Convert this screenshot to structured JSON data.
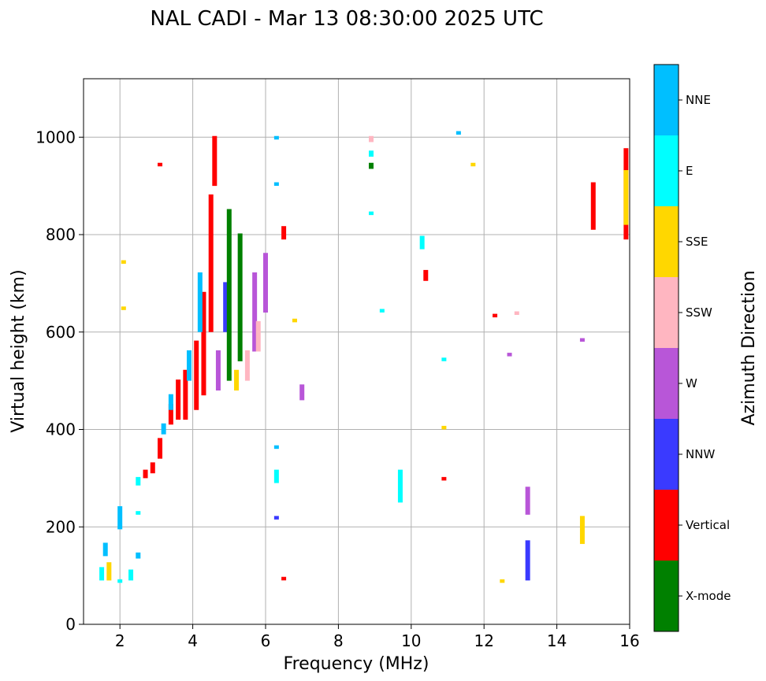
{
  "chart_data": {
    "type": "scatter",
    "title": "NAL CADI - Mar 13 08:30:00 2025 UTC",
    "xlabel": "Frequency (MHz)",
    "ylabel": "Virtual height (km)",
    "xlim": [
      1,
      16
    ],
    "ylim": [
      0,
      1120
    ],
    "xticks": [
      2,
      4,
      6,
      8,
      10,
      12,
      14,
      16
    ],
    "yticks": [
      0,
      200,
      400,
      600,
      800,
      1000
    ],
    "grid": true,
    "colorbar": {
      "label": "Azimuth Direction",
      "categories": [
        {
          "name": "X-mode",
          "color": "#008000"
        },
        {
          "name": "Vertical",
          "color": "#ff0000"
        },
        {
          "name": "NNW",
          "color": "#3a3aff"
        },
        {
          "name": "W",
          "color": "#b856d8"
        },
        {
          "name": "SSW",
          "color": "#ffb6c1"
        },
        {
          "name": "SSE",
          "color": "#ffd700"
        },
        {
          "name": "E",
          "color": "#00ffff"
        },
        {
          "name": "NNE",
          "color": "#00bfff"
        }
      ]
    },
    "traces": [
      {
        "category": "E",
        "f": 1.5,
        "h0": 90,
        "h1": 115
      },
      {
        "category": "NNE",
        "f": 1.6,
        "h0": 140,
        "h1": 165
      },
      {
        "category": "SSE",
        "f": 1.7,
        "h0": 90,
        "h1": 125
      },
      {
        "category": "NNE",
        "f": 2.0,
        "h0": 195,
        "h1": 240
      },
      {
        "category": "E",
        "f": 2.0,
        "h0": 90,
        "h1": 90
      },
      {
        "category": "SSE",
        "f": 2.1,
        "h0": 650,
        "h1": 650
      },
      {
        "category": "SSE",
        "f": 2.1,
        "h0": 745,
        "h1": 745
      },
      {
        "category": "E",
        "f": 2.3,
        "h0": 90,
        "h1": 110
      },
      {
        "category": "E",
        "f": 2.5,
        "h0": 225,
        "h1": 230
      },
      {
        "category": "NNE",
        "f": 2.5,
        "h0": 135,
        "h1": 145
      },
      {
        "category": "E",
        "f": 2.5,
        "h0": 285,
        "h1": 300
      },
      {
        "category": "Vertical",
        "f": 2.7,
        "h0": 300,
        "h1": 315
      },
      {
        "category": "Vertical",
        "f": 2.9,
        "h0": 310,
        "h1": 330
      },
      {
        "category": "Vertical",
        "f": 3.1,
        "h0": 340,
        "h1": 380
      },
      {
        "category": "NNE",
        "f": 3.2,
        "h0": 390,
        "h1": 410
      },
      {
        "category": "Vertical",
        "f": 3.4,
        "h0": 410,
        "h1": 450
      },
      {
        "category": "NNE",
        "f": 3.4,
        "h0": 440,
        "h1": 470
      },
      {
        "category": "Vertical",
        "f": 3.6,
        "h0": 420,
        "h1": 500
      },
      {
        "category": "Vertical",
        "f": 3.8,
        "h0": 420,
        "h1": 520
      },
      {
        "category": "NNE",
        "f": 3.9,
        "h0": 500,
        "h1": 560
      },
      {
        "category": "Vertical",
        "f": 4.1,
        "h0": 440,
        "h1": 580
      },
      {
        "category": "Vertical",
        "f": 4.3,
        "h0": 470,
        "h1": 680
      },
      {
        "category": "NNE",
        "f": 4.2,
        "h0": 600,
        "h1": 720
      },
      {
        "category": "Vertical",
        "f": 4.5,
        "h0": 600,
        "h1": 880
      },
      {
        "category": "Vertical",
        "f": 4.6,
        "h0": 900,
        "h1": 1000
      },
      {
        "category": "Vertical",
        "f": 3.1,
        "h0": 945,
        "h1": 945
      },
      {
        "category": "W",
        "f": 4.7,
        "h0": 480,
        "h1": 560
      },
      {
        "category": "NNW",
        "f": 4.9,
        "h0": 600,
        "h1": 700
      },
      {
        "category": "X-mode",
        "f": 5.0,
        "h0": 500,
        "h1": 850
      },
      {
        "category": "X-mode",
        "f": 5.3,
        "h0": 540,
        "h1": 800
      },
      {
        "category": "SSE",
        "f": 5.2,
        "h0": 480,
        "h1": 520
      },
      {
        "category": "SSW",
        "f": 5.5,
        "h0": 500,
        "h1": 560
      },
      {
        "category": "W",
        "f": 5.7,
        "h0": 560,
        "h1": 720
      },
      {
        "category": "SSW",
        "f": 5.8,
        "h0": 560,
        "h1": 620
      },
      {
        "category": "W",
        "f": 6.0,
        "h0": 640,
        "h1": 760
      },
      {
        "category": "NNE",
        "f": 6.3,
        "h0": 1000,
        "h1": 1000
      },
      {
        "category": "NNE",
        "f": 6.3,
        "h0": 905,
        "h1": 905
      },
      {
        "category": "Vertical",
        "f": 6.5,
        "h0": 790,
        "h1": 815
      },
      {
        "category": "SSE",
        "f": 6.8,
        "h0": 620,
        "h1": 625
      },
      {
        "category": "Vertical",
        "f": 6.5,
        "h0": 95,
        "h1": 95
      },
      {
        "category": "E",
        "f": 6.3,
        "h0": 290,
        "h1": 315
      },
      {
        "category": "NNE",
        "f": 6.3,
        "h0": 365,
        "h1": 365
      },
      {
        "category": "NNW",
        "f": 6.3,
        "h0": 220,
        "h1": 220
      },
      {
        "category": "W",
        "f": 7.0,
        "h0": 460,
        "h1": 490
      },
      {
        "category": "SSW",
        "f": 8.9,
        "h0": 990,
        "h1": 1000
      },
      {
        "category": "E",
        "f": 8.9,
        "h0": 960,
        "h1": 970
      },
      {
        "category": "X-mode",
        "f": 8.9,
        "h0": 935,
        "h1": 945
      },
      {
        "category": "E",
        "f": 8.9,
        "h0": 845,
        "h1": 845
      },
      {
        "category": "E",
        "f": 9.2,
        "h0": 645,
        "h1": 645
      },
      {
        "category": "E",
        "f": 9.7,
        "h0": 250,
        "h1": 315
      },
      {
        "category": "E",
        "f": 10.3,
        "h0": 770,
        "h1": 795
      },
      {
        "category": "Vertical",
        "f": 10.4,
        "h0": 705,
        "h1": 725
      },
      {
        "category": "E",
        "f": 10.9,
        "h0": 545,
        "h1": 545
      },
      {
        "category": "SSE",
        "f": 10.9,
        "h0": 405,
        "h1": 405
      },
      {
        "category": "Vertical",
        "f": 10.9,
        "h0": 300,
        "h1": 300
      },
      {
        "category": "NNE",
        "f": 11.3,
        "h0": 1010,
        "h1": 1010
      },
      {
        "category": "SSE",
        "f": 11.7,
        "h0": 945,
        "h1": 945
      },
      {
        "category": "Vertical",
        "f": 12.3,
        "h0": 635,
        "h1": 635
      },
      {
        "category": "SSW",
        "f": 12.9,
        "h0": 640,
        "h1": 640
      },
      {
        "category": "W",
        "f": 12.7,
        "h0": 555,
        "h1": 555
      },
      {
        "category": "NNW",
        "f": 13.2,
        "h0": 90,
        "h1": 170
      },
      {
        "category": "W",
        "f": 13.2,
        "h0": 225,
        "h1": 280
      },
      {
        "category": "SSE",
        "f": 12.5,
        "h0": 90,
        "h1": 90
      },
      {
        "category": "SSE",
        "f": 14.7,
        "h0": 165,
        "h1": 220
      },
      {
        "category": "W",
        "f": 14.7,
        "h0": 585,
        "h1": 585
      },
      {
        "category": "Vertical",
        "f": 15.0,
        "h0": 810,
        "h1": 905
      },
      {
        "category": "Vertical",
        "f": 15.9,
        "h0": 790,
        "h1": 975
      },
      {
        "category": "SSE",
        "f": 15.9,
        "h0": 820,
        "h1": 930
      }
    ]
  }
}
